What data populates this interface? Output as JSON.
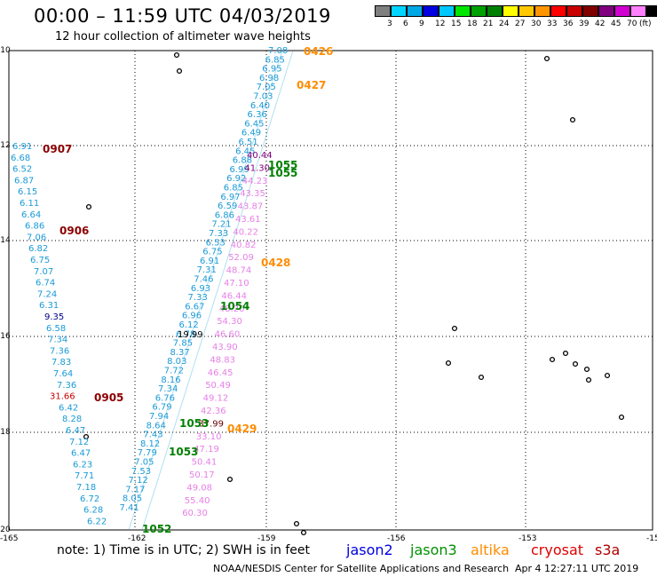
{
  "header": {
    "title": "00:00 – 11:59 UTC 04/03/2019",
    "subtitle": "12 hour collection of altimeter wave heights"
  },
  "color_scale": {
    "colors": [
      "#7f7f7f",
      "#00d5ff",
      "#00a8e6",
      "#0000e0",
      "#00c8ff",
      "#00e600",
      "#00a000",
      "#008000",
      "#ffff00",
      "#ffc800",
      "#ff9600",
      "#ff0000",
      "#c80000",
      "#800000",
      "#800080",
      "#d000d0",
      "#ff80ff",
      "#000000"
    ],
    "labels": [
      "3",
      "6",
      "9",
      "12",
      "15",
      "18",
      "21",
      "24",
      "27",
      "30",
      "33",
      "36",
      "39",
      "42",
      "45",
      "70",
      "(ft)"
    ]
  },
  "axes": {
    "lat_labels": [
      "-10",
      "-12",
      "-14",
      "-16",
      "-18",
      "-20"
    ],
    "lon_labels": [
      "-165",
      "-162",
      "-159",
      "-156",
      "-153",
      "-15"
    ]
  },
  "passes": [
    {
      "label": "0426",
      "color": "#ff8c00"
    },
    {
      "label": "0427",
      "color": "#ff8c00"
    },
    {
      "label": "0907",
      "color": "#8b0000"
    },
    {
      "label": "1055",
      "color": "#008000"
    },
    {
      "label": "1055",
      "color": "#008000"
    },
    {
      "label": "0906",
      "color": "#8b0000"
    },
    {
      "label": "0428",
      "color": "#ff8c00"
    },
    {
      "label": "1054",
      "color": "#008000"
    },
    {
      "label": "0905",
      "color": "#8b0000"
    },
    {
      "label": "1053",
      "color": "#008000"
    },
    {
      "label": "0429",
      "color": "#ff8c00"
    },
    {
      "label": "1053",
      "color": "#008000"
    },
    {
      "label": "1052",
      "color": "#008000"
    }
  ],
  "left_track_values": [
    "6.91",
    "6.68",
    "6.52",
    "6.87",
    "6.15",
    "6.11",
    "6.64",
    "6.86",
    "7.06",
    "6.82",
    "6.75",
    "7.07",
    "6.74",
    "7.24",
    "6.31",
    "9.35",
    "6.58",
    "7.34",
    "7.36",
    "7.83",
    "7.64",
    "7.36",
    "31.66",
    "6.42",
    "8.28",
    "6.47",
    "7.12",
    "6.47",
    "6.23",
    "7.71",
    "7.18",
    "6.72",
    "6.28",
    "6.22"
  ],
  "pink_track_values": [
    "40.44",
    "41.30",
    "44.23",
    "43.35",
    "43.87",
    "43.61",
    "40.22",
    "40.82",
    "52.09",
    "48.74",
    "47.10",
    "46.44",
    "48.20",
    "54.30",
    "46.60",
    "43.90",
    "48.83",
    "46.45",
    "50.49",
    "49.12",
    "42.36",
    "37.99",
    "33.10",
    "47.19",
    "50.41",
    "50.17",
    "49.08",
    "55.40",
    "60.30"
  ],
  "center_track_values": [
    "7.08",
    "6.85",
    "6.95",
    "6.98",
    "7.05",
    "7.03",
    "6.40",
    "6.36",
    "6.45",
    "6.49",
    "6.51",
    "6.45",
    "6.88",
    "6.99",
    "6.92",
    "6.85",
    "6.97",
    "6.59",
    "6.86",
    "7.21",
    "7.33",
    "6.53",
    "6.75",
    "6.91",
    "7.31",
    "7.46",
    "6.93",
    "7.33",
    "6.67",
    "6.96",
    "6.12",
    "6.78",
    "7.85",
    "8.37",
    "8.03",
    "7.72",
    "8.16",
    "7.34",
    "6.76",
    "6.79",
    "7.94",
    "8.64",
    "7.43",
    "8.12",
    "7.79",
    "7.05",
    "7.53",
    "7.12",
    "7.17",
    "8.05",
    "7.41",
    "19.99"
  ],
  "satellites": [
    {
      "name": "jason2",
      "color": "#0000e0"
    },
    {
      "name": "jason3",
      "color": "#009000"
    },
    {
      "name": "altika",
      "color": "#ff8c00"
    },
    {
      "name": "cryosat",
      "color": "#e00000"
    },
    {
      "name": "s3a",
      "color": "#b00000"
    }
  ],
  "footer": {
    "note": "note:  1) Time is in UTC;  2) SWH is in feet",
    "credit": "NOAA/NESDIS Center for Satellite Applications and Research",
    "generated": "Apr  4 12:27:11 UTC 2019"
  }
}
